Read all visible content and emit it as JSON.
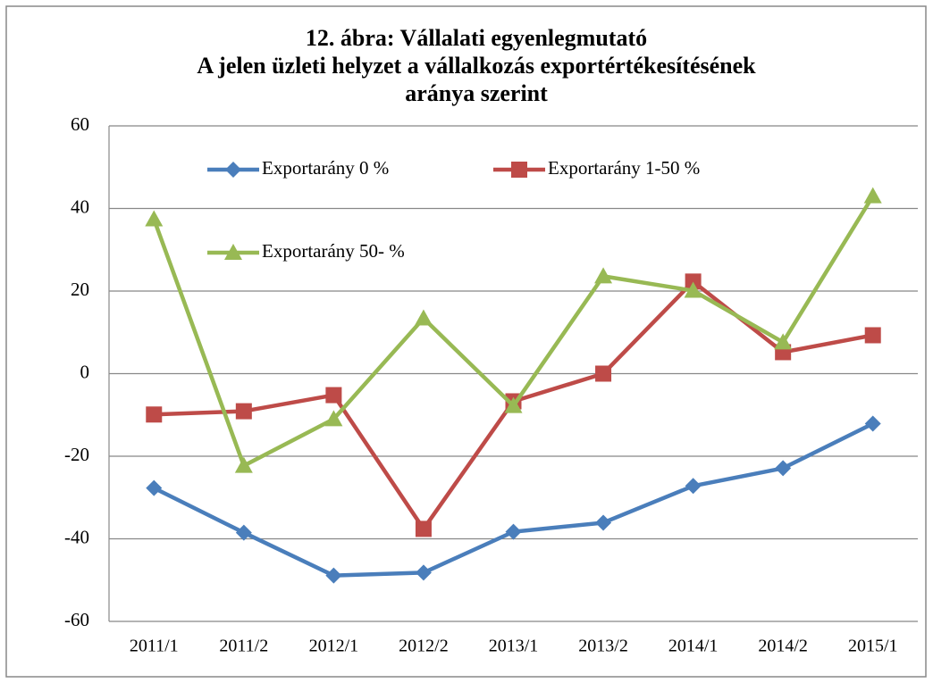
{
  "chart_data": {
    "type": "line",
    "title": [
      "12. ábra: Vállalati egyenlegmutató",
      "A jelen üzleti helyzet a vállalkozás exportértékesítésének",
      "aránya szerint"
    ],
    "categories": [
      "2011/1",
      "2011/2",
      "2012/1",
      "2012/2",
      "2013/1",
      "2013/2",
      "2014/1",
      "2014/2",
      "2015/1"
    ],
    "series": [
      {
        "name": "Exportarány 0 %",
        "color": "#4a7ebb",
        "marker": "diamond",
        "values": [
          -27.7,
          -38.5,
          -48.9,
          -48.2,
          -38.3,
          -36.1,
          -27.2,
          -22.9,
          -12.1
        ]
      },
      {
        "name": "Exportarány 1-50 %",
        "color": "#be4b48",
        "marker": "square",
        "values": [
          -9.9,
          -9.1,
          -5.2,
          -37.6,
          -6.7,
          0,
          22.3,
          5.2,
          9.3
        ]
      },
      {
        "name": "Exportarány 50- %",
        "color": "#98b954",
        "marker": "triangle",
        "values": [
          37.4,
          -22.3,
          -11.0,
          13.4,
          -7.8,
          23.6,
          20.1,
          7.6,
          43.0
        ]
      }
    ],
    "ylim": [
      -60,
      60
    ],
    "yticks": [
      -60,
      -40,
      -20,
      0,
      20,
      40,
      60
    ],
    "grid": true
  }
}
